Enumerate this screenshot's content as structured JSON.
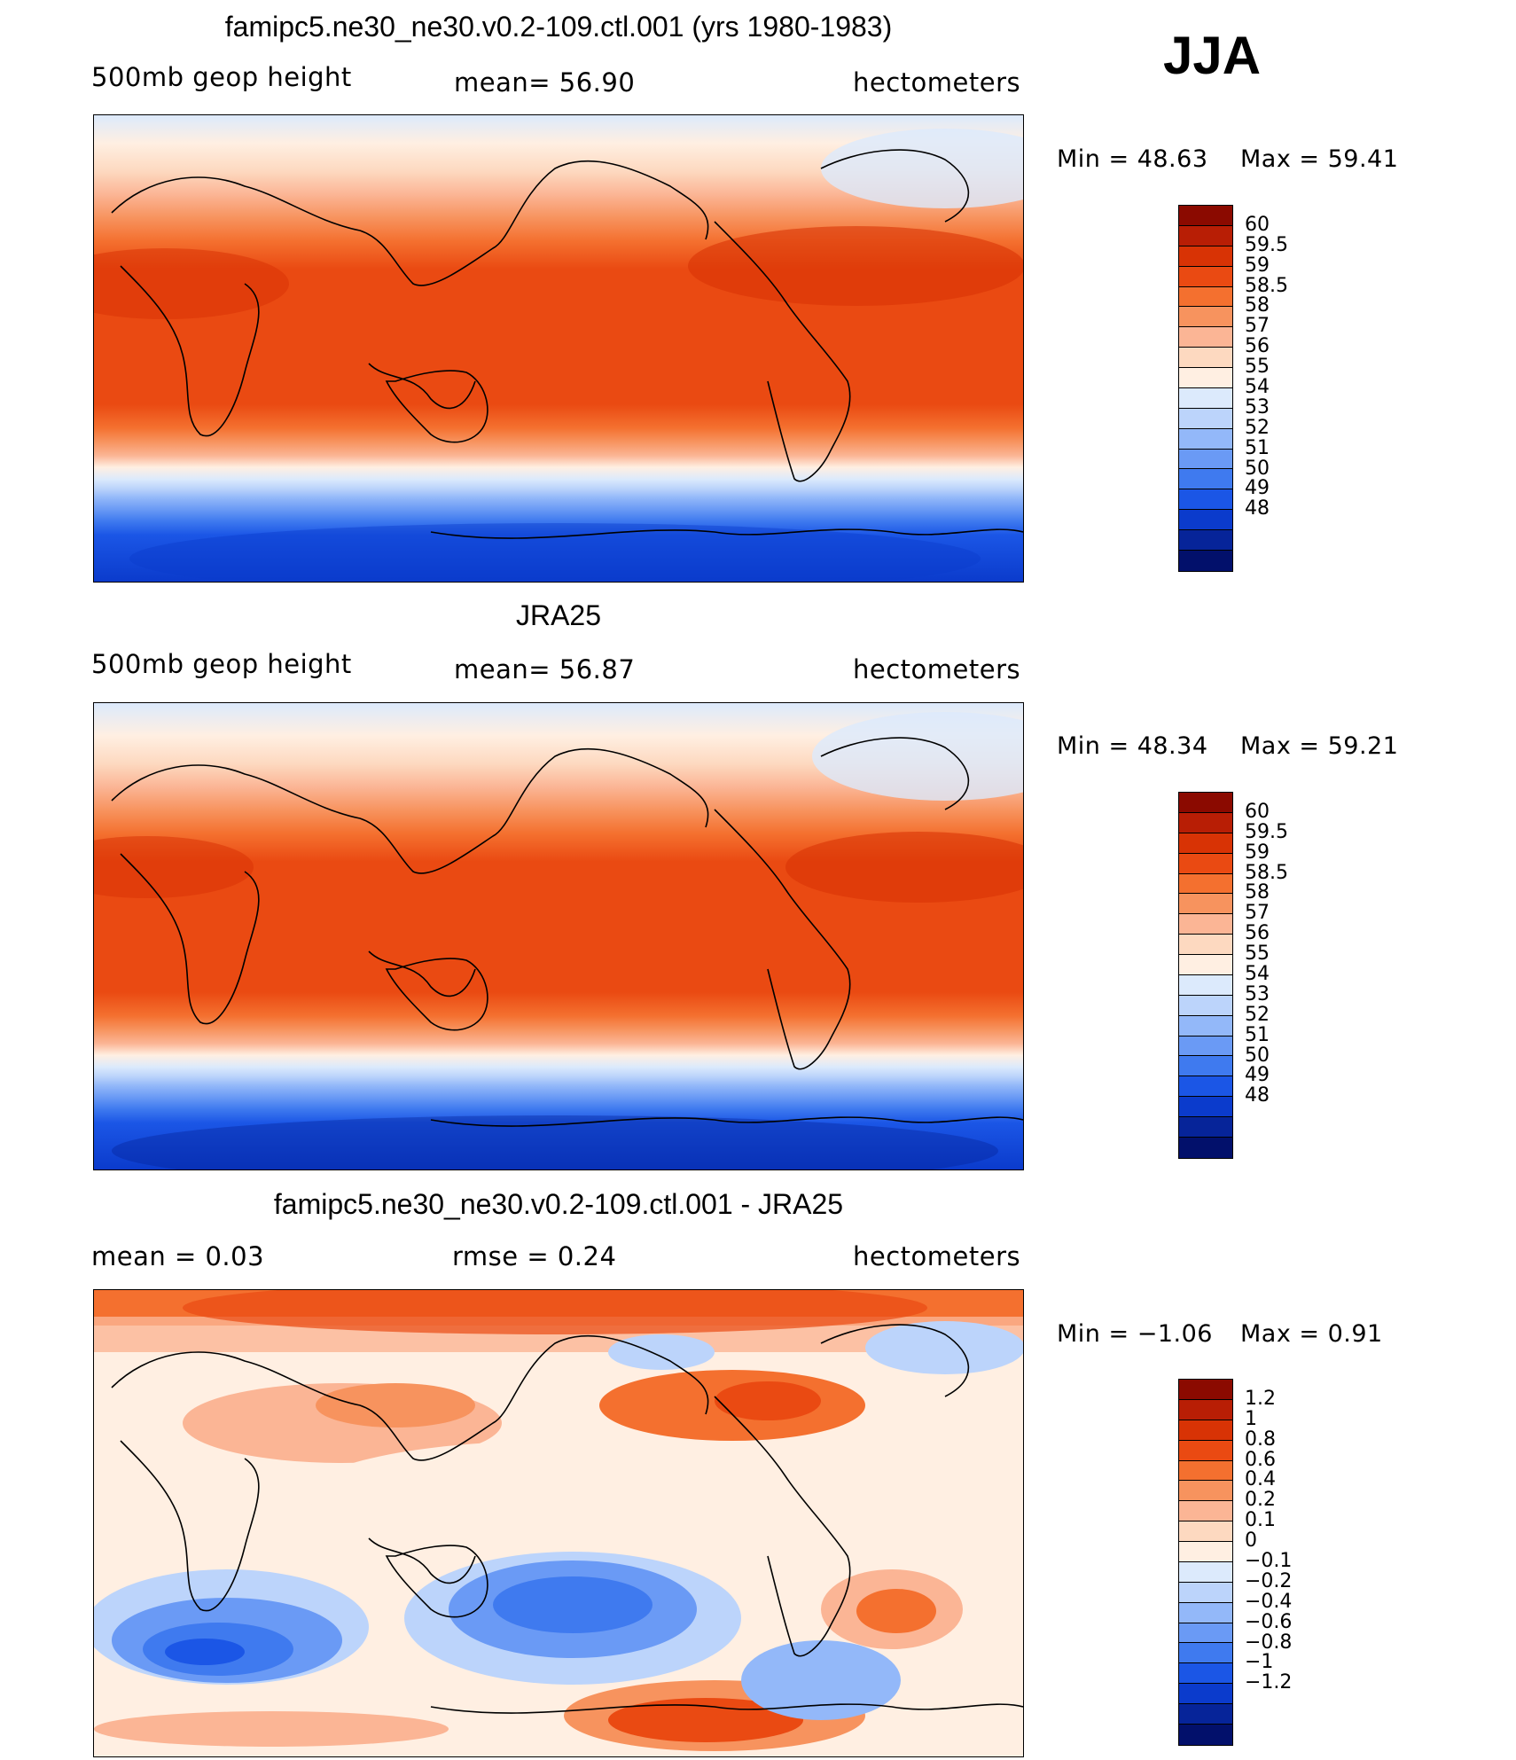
{
  "season": "JJA",
  "panels": [
    {
      "id": "model",
      "title": "famipc5.ne30_ne30.v0.2-109.ctl.001 (yrs 1980-1983)",
      "left_label": "500mb geop height",
      "center_label": "mean=  56.90",
      "units": "hectometers",
      "min_text": "Min =   48.63",
      "max_text": "Max =   59.41",
      "colorbar": {
        "labels": [
          "60",
          "59.5",
          "59",
          "58.5",
          "58",
          "57",
          "56",
          "55",
          "54",
          "53",
          "52",
          "51",
          "50",
          "49",
          "48"
        ],
        "colors": [
          "#8b0a00",
          "#b81e05",
          "#d83305",
          "#ea4a12",
          "#f4702f",
          "#f7935e",
          "#fbb595",
          "#fdd9c0",
          "#ffefe2",
          "#dceafc",
          "#bcd4fb",
          "#93b8f9",
          "#6a9af5",
          "#3f7aef",
          "#1b56e6",
          "#0b3bcc",
          "#062499",
          "#02106b"
        ]
      }
    },
    {
      "id": "obs",
      "title": "JRA25",
      "left_label": "500mb geop height",
      "center_label": "mean=  56.87",
      "units": "hectometers",
      "min_text": "Min =   48.34",
      "max_text": "Max =   59.21",
      "colorbar": {
        "labels": [
          "60",
          "59.5",
          "59",
          "58.5",
          "58",
          "57",
          "56",
          "55",
          "54",
          "53",
          "52",
          "51",
          "50",
          "49",
          "48"
        ],
        "colors": [
          "#8b0a00",
          "#b81e05",
          "#d83305",
          "#ea4a12",
          "#f4702f",
          "#f7935e",
          "#fbb595",
          "#fdd9c0",
          "#ffefe2",
          "#dceafc",
          "#bcd4fb",
          "#93b8f9",
          "#6a9af5",
          "#3f7aef",
          "#1b56e6",
          "#0b3bcc",
          "#062499",
          "#02106b"
        ]
      }
    },
    {
      "id": "diff",
      "title": "famipc5.ne30_ne30.v0.2-109.ctl.001 - JRA25",
      "left_label": "mean =     0.03",
      "center_label": "rmse =     0.24",
      "units": "hectometers",
      "min_text": "Min =  −1.06",
      "max_text": "Max =     0.91",
      "colorbar": {
        "labels": [
          "1.2",
          "1",
          "0.8",
          "0.6",
          "0.4",
          "0.2",
          "0.1",
          "0",
          "−0.1",
          "−0.2",
          "−0.4",
          "−0.6",
          "−0.8",
          "−1",
          "−1.2"
        ],
        "colors": [
          "#8b0a00",
          "#b81e05",
          "#d83305",
          "#ea4a12",
          "#f4702f",
          "#f7935e",
          "#fbb595",
          "#fdd9c0",
          "#ffefe2",
          "#dceafc",
          "#bcd4fb",
          "#93b8f9",
          "#6a9af5",
          "#3f7aef",
          "#1b56e6",
          "#0b3bcc",
          "#062499",
          "#02106b"
        ]
      }
    }
  ]
}
